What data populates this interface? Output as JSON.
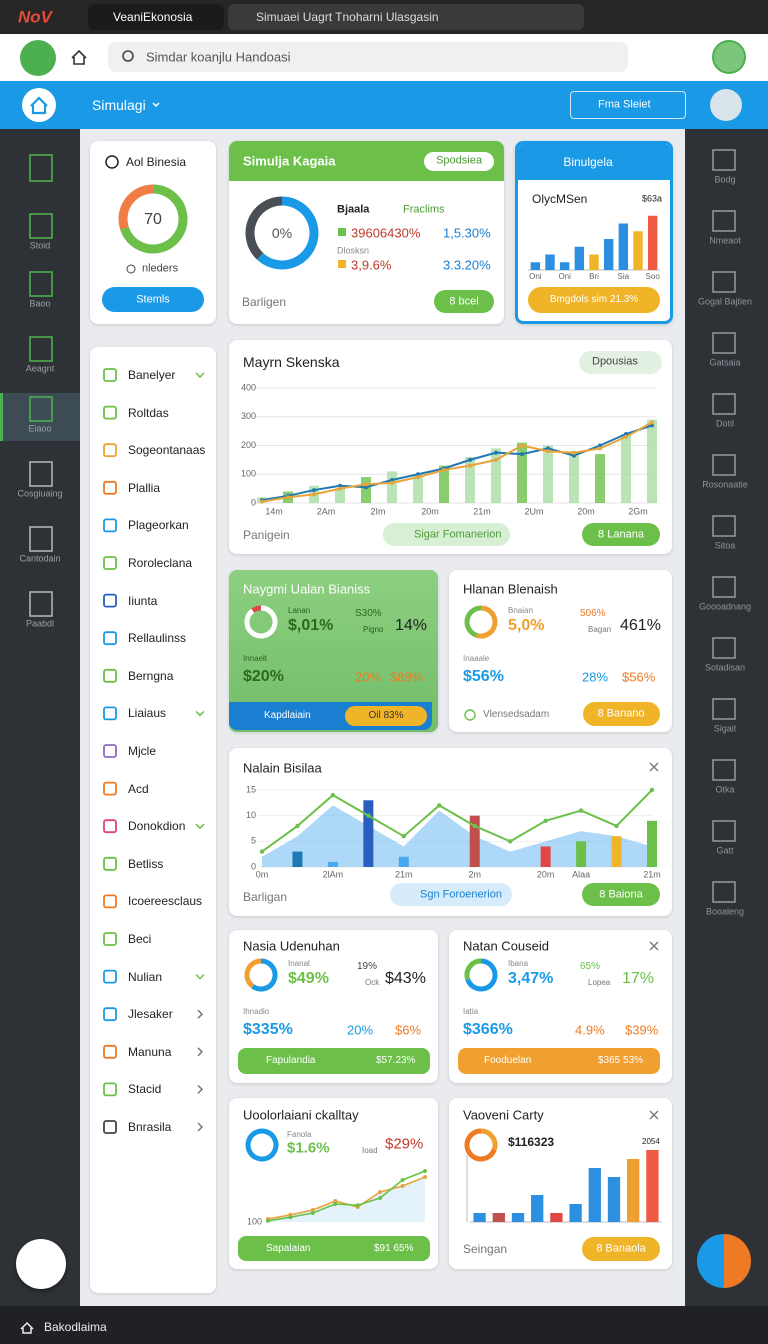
{
  "browser": {
    "logo": "NoV",
    "tab_active": "VeaniEkonosia",
    "tab_other": "Simuaei Uagrt Tnoharni Ulasgasin",
    "search": "Simdar koanjlu Handoasi"
  },
  "appbar": {
    "title": "Simulagi",
    "button": "Fma Sleiet"
  },
  "left_rail": [
    "Stoid",
    "Baoo",
    "Aeagnt",
    "Eiaoo",
    "Cosgiuaing",
    "Cantodain",
    "Paabdl"
  ],
  "right_rail": [
    "Bodg",
    "Nmeaot",
    "Gogal Bajtien",
    "Gatsaia",
    "Dotil",
    "Rosonaatie",
    "Sitoa",
    "Goooadnang",
    "Sotadisan",
    "Sigait",
    "Otka",
    "Gatt",
    "Booaleng"
  ],
  "menu": [
    {
      "label": "Banelyer",
      "chevron": "down"
    },
    {
      "label": "Roltdas"
    },
    {
      "label": "Sogeontanaas"
    },
    {
      "label": "Plallia"
    },
    {
      "label": "Plageorkan"
    },
    {
      "label": "Roroleclana"
    },
    {
      "label": "Iiunta"
    },
    {
      "label": "Rellaulinss"
    },
    {
      "label": "Berngna"
    },
    {
      "label": "Liaiaus",
      "chevron": "down"
    },
    {
      "label": "Mjcle"
    },
    {
      "label": "Acd"
    },
    {
      "label": "Donokdion",
      "chevron": "down"
    },
    {
      "label": "Betliss"
    },
    {
      "label": "Icoereesclaus"
    },
    {
      "label": "Beci"
    },
    {
      "label": "Nulian",
      "chevron": "down"
    },
    {
      "label": "Jlesaker",
      "chevron": "right"
    },
    {
      "label": "Manuna",
      "chevron": "right"
    },
    {
      "label": "Stacid",
      "chevron": "right"
    },
    {
      "label": "Bnrasila",
      "chevron": "right"
    }
  ],
  "cards": {
    "overview": {
      "title": "Aol Binesia",
      "gauge": {
        "value": 70,
        "ylim": [
          0,
          100
        ]
      },
      "legend": "nleders",
      "button": "Stemls"
    },
    "simulation": {
      "title": "Simulja Kagaia",
      "pill": "Spodsiea",
      "donut_label": "0%",
      "col1": "Bjaala",
      "col2": "Fraclims",
      "row1_a": "39606430%",
      "row1_b": "1,5.30%",
      "sub": "Dlosksn",
      "row2_a": "3,9.6%",
      "row2_b": "3.3.20%",
      "footer": "Barligen",
      "button": "8 bcel"
    },
    "binulgela": {
      "title": "Binulgela",
      "subtitle": "OlycMSen",
      "corner": "$63a",
      "button": "Bmgdols sim 21.3%",
      "chart": {
        "type": "bar",
        "categories": [
          "Oni",
          null,
          "Oni",
          null,
          "Bri",
          null,
          "Sia",
          null,
          "Soo"
        ],
        "values": [
          1,
          2,
          1,
          3,
          2,
          4,
          6,
          5,
          7
        ],
        "colors": [
          "#2c8fe0",
          "#2c8fe0",
          "#2c8fe0",
          "#2c8fe0",
          "#f0b429",
          "#2c8fe0",
          "#2c8fe0",
          "#f0b429",
          "#ef5a45"
        ],
        "ylim": [
          0,
          8
        ]
      }
    },
    "main": {
      "title": "Mayrn Skenska",
      "filter": "Dpousias",
      "footer": "Panigein",
      "pill": "Sigar Fomanerion",
      "button": "8 Lanana",
      "chart": {
        "type": "bar_line",
        "categories": [
          "14m",
          null,
          "2Am",
          null,
          "2Im",
          null,
          "20m",
          null,
          "21m",
          null,
          "2Um",
          null,
          "20m",
          null,
          "2Gm",
          null
        ],
        "ylim": [
          0,
          400
        ],
        "yticks": [
          0,
          100,
          200,
          300,
          400
        ],
        "grid": true,
        "bars": {
          "color": "#a9dca4",
          "values": [
            20,
            40,
            60,
            50,
            90,
            110,
            100,
            130,
            160,
            190,
            210,
            200,
            180,
            170,
            240,
            290
          ]
        },
        "series": [
          {
            "color": "#1f78b4",
            "values": [
              10,
              25,
              45,
              60,
              55,
              80,
              100,
              120,
              150,
              175,
              170,
              190,
              165,
              200,
              240,
              270
            ]
          },
          {
            "color": "#e8a33a",
            "values": [
              5,
              20,
              30,
              50,
              65,
              70,
              90,
              115,
              130,
              150,
              200,
              180,
              175,
              190,
              230,
              280
            ]
          }
        ]
      }
    },
    "green": {
      "title": "Naygmi Ualan Bianiss",
      "k1_label": "Lanan",
      "k1": "$,01%",
      "k2_label": "Pigno",
      "k2_top": "S30%",
      "k2": "14%",
      "k3_label": "Innaelt",
      "k3": "$20%",
      "k4": "20%",
      "k5": "$89%",
      "bar_text": "Kapdlaiain",
      "bar_pill": "Oil 83%"
    },
    "hlanan": {
      "title": "Hlanan Blenaish",
      "k1_label": "Bnaian",
      "k1": "5,0%",
      "k2_label": "Bagan",
      "k2_top": "506%",
      "k2": "461%",
      "k3_label": "Inaaale",
      "k3": "$56%",
      "k4": "28%",
      "k5": "$56%",
      "footer": "Vlensedsadam",
      "button": "8 Banano"
    },
    "area": {
      "title": "Nalain Bisilaa",
      "footer": "Barligan",
      "pill": "Sgn Foroenerion",
      "button": "8 Baiona",
      "chart": {
        "type": "area_bar",
        "categories": [
          "0m",
          null,
          "2lAm",
          null,
          "21m",
          null,
          "2m",
          null,
          "20m",
          "Alaa",
          null,
          "21m"
        ],
        "ylim": [
          0,
          15
        ],
        "yticks": [
          0,
          5,
          10,
          15
        ],
        "grid": true,
        "area": {
          "color": "#6bb8f0",
          "values": [
            2,
            6,
            12,
            8,
            4,
            11,
            6,
            3,
            5,
            7,
            6,
            4
          ]
        },
        "line": {
          "color": "#6cc04a",
          "values": [
            3,
            8,
            14,
            10,
            6,
            12,
            8,
            5,
            9,
            11,
            8,
            15
          ]
        },
        "bars": {
          "values": [
            0,
            3,
            1,
            13,
            2,
            0,
            10,
            0,
            4,
            5,
            6,
            9
          ],
          "colors": [
            "#1f78b4",
            "#1f78b4",
            "#4aa8ee",
            "#2b5fbf",
            "#4aa8ee",
            "#1f78b4",
            "#c0504d",
            "#1f78b4",
            "#e04646",
            "#6cc04a",
            "#f0b429",
            "#6cc04a"
          ]
        }
      }
    },
    "nasia": {
      "title": "Nasia Udenuhan",
      "k1_label": "Inanal",
      "k1": "$49%",
      "k2_top": "19%",
      "k2_label": "Ock",
      "k2": "$43%",
      "k3_label": "Ihnadio",
      "k3": "$335%",
      "k4": "20%",
      "k5": "$6%",
      "bar_text": "Fapulandia",
      "bar_pill": "$57.23%"
    },
    "natan": {
      "title": "Natan Couseid",
      "k1_label": "Ibana",
      "k1": "3,47%",
      "k2_top": "65%",
      "k2_label": "Lopea",
      "k2": "17%",
      "k3_label": "Iatia",
      "k3": "$366%",
      "k4": "4.9%",
      "k5": "$39%",
      "bar_text": "Fooduelan",
      "bar_pill": "$365 53%"
    },
    "uool": {
      "title": "Uoolorlaiani ckalltay",
      "k1_label": "Fanola",
      "k1": "$1.6%",
      "k2_label": "Ioad",
      "k2": "$29%",
      "bar_text": "Sapalaian",
      "bar_pill": "$91 65%",
      "chart": {
        "type": "line",
        "ylim": [
          100,
          200
        ],
        "yticks": [
          100
        ],
        "series": [
          {
            "color": "#e8a33a",
            "values": [
              105,
              112,
              120,
              135,
              125,
              150,
              160,
              175
            ]
          },
          {
            "color": "#6cc04a",
            "values": [
              102,
              108,
              115,
              130,
              128,
              140,
              170,
              185
            ]
          }
        ]
      }
    },
    "vaoveni": {
      "title": "Vaoveni Carty",
      "value": "$116323",
      "corner": "2054",
      "footer": "Seingan",
      "button": "8 Banaola",
      "chart": {
        "type": "bar",
        "values": [
          1,
          1,
          1,
          3,
          1,
          2,
          6,
          5,
          7,
          8
        ],
        "ylim": [
          0,
          8
        ],
        "colors": [
          "#2c8fe0",
          "#c0504d",
          "#2c8fe0",
          "#2c8fe0",
          "#e04646",
          "#2c8fe0",
          "#2c8fe0",
          "#2c8fe0",
          "#f0a030",
          "#ef5a45"
        ]
      }
    }
  },
  "statusbar": {
    "text": "Bakodlaima"
  }
}
